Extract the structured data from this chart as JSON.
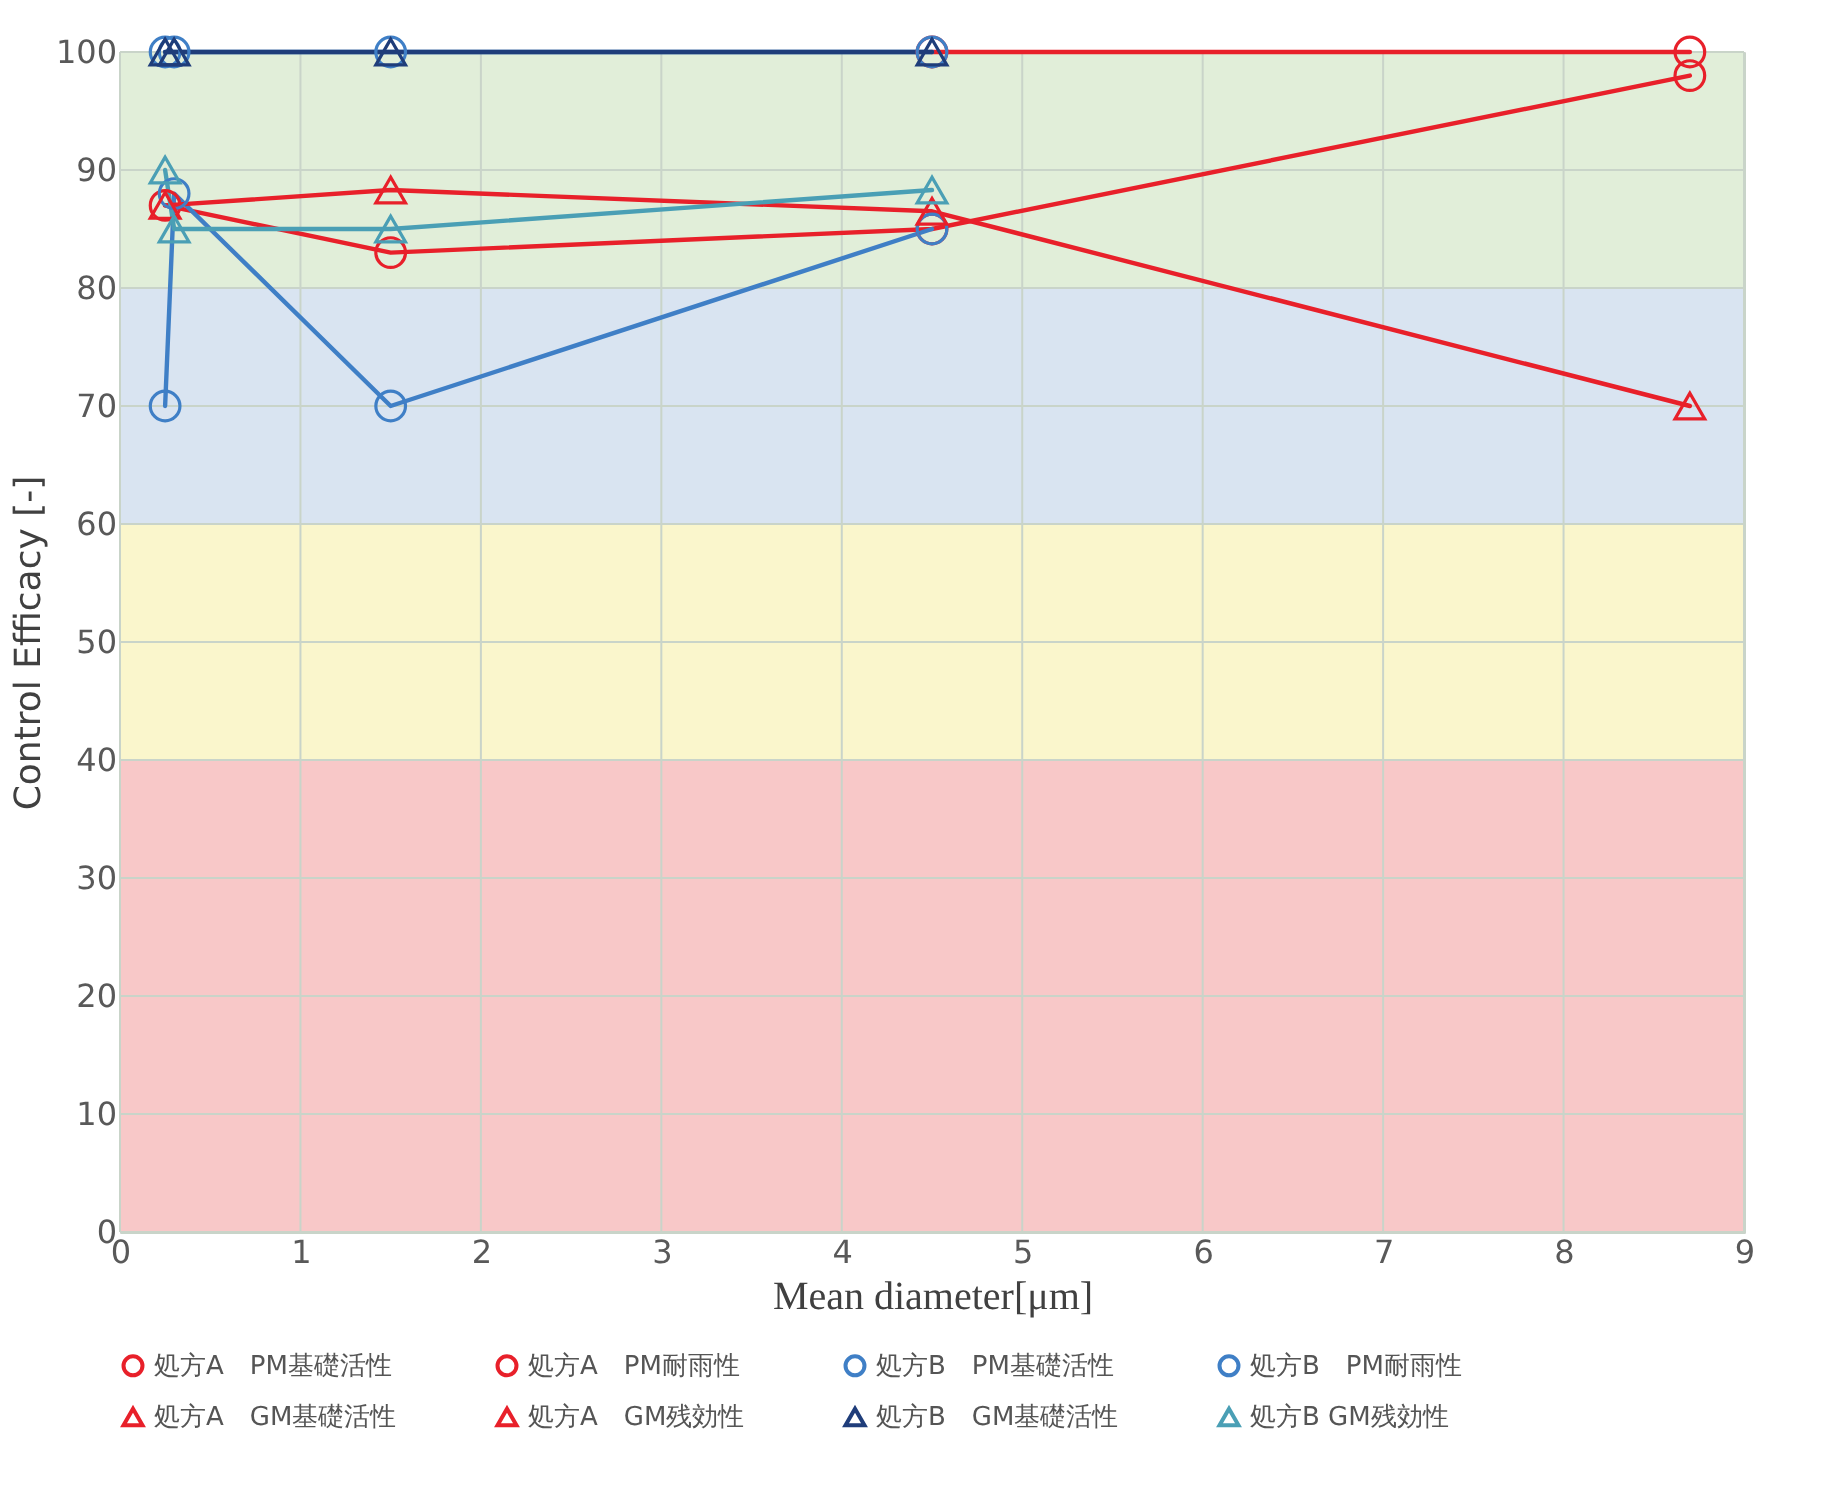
{
  "chart_data": {
    "type": "line",
    "xlabel": "Mean diameter[μm]",
    "ylabel": "Control Efficacy [-]",
    "xlim": [
      0,
      9
    ],
    "ylim": [
      0,
      100
    ],
    "xticks": [
      0,
      1,
      2,
      3,
      4,
      5,
      6,
      7,
      8,
      9
    ],
    "yticks": [
      0,
      10,
      20,
      30,
      40,
      50,
      60,
      70,
      80,
      90,
      100
    ],
    "grid": true,
    "legend": "bottom",
    "line_style": "solid",
    "bands": [
      {
        "axis": "y",
        "from": 0,
        "to": 40,
        "color": "#f8c8c8"
      },
      {
        "axis": "y",
        "from": 40,
        "to": 60,
        "color": "#faf6cc"
      },
      {
        "axis": "y",
        "from": 60,
        "to": 80,
        "color": "#d9e4f1"
      },
      {
        "axis": "y",
        "from": 80,
        "to": 100,
        "color": "#e1eed9"
      }
    ],
    "series": [
      {
        "name": "処方A　PM基礎活性",
        "color": "#e8202a",
        "marker": "circle",
        "x": [
          4.5,
          8.7
        ],
        "values": [
          100,
          100
        ]
      },
      {
        "name": "処方A　PM耐雨性",
        "color": "#e8202a",
        "marker": "circle",
        "x": [
          0.25,
          1.5,
          4.5,
          8.7
        ],
        "values": [
          87,
          83,
          85,
          98
        ]
      },
      {
        "name": "処方B　PM基礎活性",
        "color": "#3f7fc6",
        "marker": "circle",
        "x": [
          0.25,
          0.3,
          1.5,
          4.5
        ],
        "values": [
          100,
          100,
          100,
          100
        ]
      },
      {
        "name": "処方B　PM耐雨性",
        "color": "#3f7fc6",
        "marker": "circle",
        "x": [
          0.25,
          0.3,
          1.5,
          4.5
        ],
        "values": [
          70,
          88,
          70,
          85
        ]
      },
      {
        "name": "処方A　GM基礎活性",
        "color": "#e8202a",
        "marker": "triangle"
      },
      {
        "name": "処方A　GM残効性",
        "color": "#e8202a",
        "marker": "triangle",
        "x": [
          0.25,
          1.5,
          4.5,
          8.7
        ],
        "values": [
          87,
          88.3,
          86.5,
          70
        ]
      },
      {
        "name": "処方B　GM基礎活性",
        "color": "#1f3d7a",
        "marker": "triangle",
        "x": [
          0.25,
          0.3,
          1.5,
          4.5
        ],
        "values": [
          100,
          100,
          100,
          100
        ]
      },
      {
        "name": "処方B GM残効性",
        "color": "#4a9fb5",
        "marker": "triangle",
        "x": [
          0.25,
          0.3,
          1.5,
          4.5
        ],
        "values": [
          90,
          85,
          85,
          88.3
        ]
      }
    ]
  }
}
